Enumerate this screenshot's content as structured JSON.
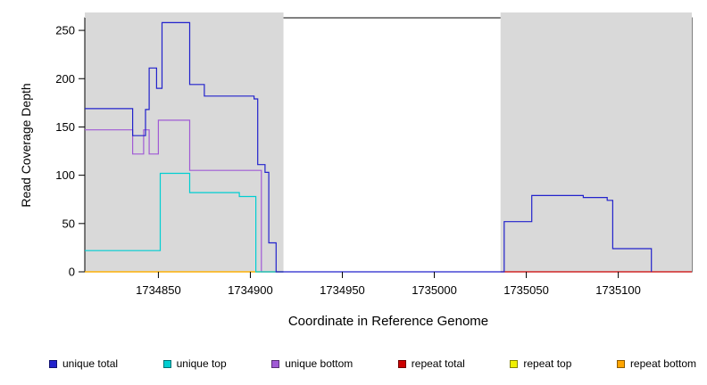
{
  "chart_data": {
    "type": "line",
    "title": "",
    "xlabel": "Coordinate in Reference Genome",
    "ylabel": "Read Coverage Depth",
    "xlim": [
      1734810,
      1735140
    ],
    "ylim": [
      0,
      263
    ],
    "xticks": [
      1734850,
      1734900,
      1734950,
      1735000,
      1735050,
      1735100
    ],
    "yticks": [
      0,
      50,
      100,
      150,
      200,
      250
    ],
    "grid": false,
    "legend_position": "bottom",
    "region_color": "#d9d9d9",
    "shaded_regions": [
      [
        1734810,
        1734918
      ],
      [
        1735036,
        1735140
      ]
    ],
    "series": [
      {
        "name": "unique total",
        "color": "#2222cc",
        "points": [
          [
            1734810,
            169
          ],
          [
            1734836,
            169
          ],
          [
            1734836,
            141
          ],
          [
            1734843,
            141
          ],
          [
            1734843,
            168
          ],
          [
            1734845,
            168
          ],
          [
            1734845,
            211
          ],
          [
            1734849,
            211
          ],
          [
            1734849,
            190
          ],
          [
            1734852,
            190
          ],
          [
            1734852,
            258
          ],
          [
            1734867,
            258
          ],
          [
            1734867,
            194
          ],
          [
            1734875,
            194
          ],
          [
            1734875,
            182
          ],
          [
            1734902,
            182
          ],
          [
            1734902,
            179
          ],
          [
            1734904,
            179
          ],
          [
            1734904,
            111
          ],
          [
            1734908,
            111
          ],
          [
            1734908,
            103
          ],
          [
            1734910,
            103
          ],
          [
            1734910,
            30
          ],
          [
            1734914,
            30
          ],
          [
            1734914,
            0
          ],
          [
            1735038,
            0
          ],
          [
            1735038,
            52
          ],
          [
            1735053,
            52
          ],
          [
            1735053,
            79
          ],
          [
            1735081,
            79
          ],
          [
            1735081,
            77
          ],
          [
            1735094,
            77
          ],
          [
            1735094,
            74
          ],
          [
            1735097,
            74
          ],
          [
            1735097,
            24
          ],
          [
            1735118,
            24
          ],
          [
            1735118,
            0
          ]
        ]
      },
      {
        "name": "unique top",
        "color": "#00ced1",
        "points": [
          [
            1734810,
            22
          ],
          [
            1734851,
            22
          ],
          [
            1734851,
            102
          ],
          [
            1734867,
            102
          ],
          [
            1734867,
            82
          ],
          [
            1734894,
            82
          ],
          [
            1734894,
            78
          ],
          [
            1734903,
            78
          ],
          [
            1734903,
            0
          ],
          [
            1734918,
            0
          ]
        ]
      },
      {
        "name": "unique bottom",
        "color": "#a05ad5",
        "points": [
          [
            1734810,
            147
          ],
          [
            1734836,
            147
          ],
          [
            1734836,
            122
          ],
          [
            1734842,
            122
          ],
          [
            1734842,
            147
          ],
          [
            1734845,
            147
          ],
          [
            1734845,
            122
          ],
          [
            1734850,
            122
          ],
          [
            1734850,
            157
          ],
          [
            1734867,
            157
          ],
          [
            1734867,
            105
          ],
          [
            1734906,
            105
          ],
          [
            1734906,
            0
          ],
          [
            1734918,
            0
          ]
        ]
      },
      {
        "name": "repeat total",
        "color": "#cc0000",
        "points": [
          [
            1735036,
            0
          ],
          [
            1735140,
            0
          ]
        ]
      },
      {
        "name": "repeat top",
        "color": "#f0f000",
        "points": [
          [
            1734810,
            0
          ],
          [
            1734918,
            0
          ]
        ]
      },
      {
        "name": "repeat bottom",
        "color": "#ffa500",
        "points": [
          [
            1734810,
            0
          ],
          [
            1734918,
            0
          ]
        ]
      }
    ]
  }
}
